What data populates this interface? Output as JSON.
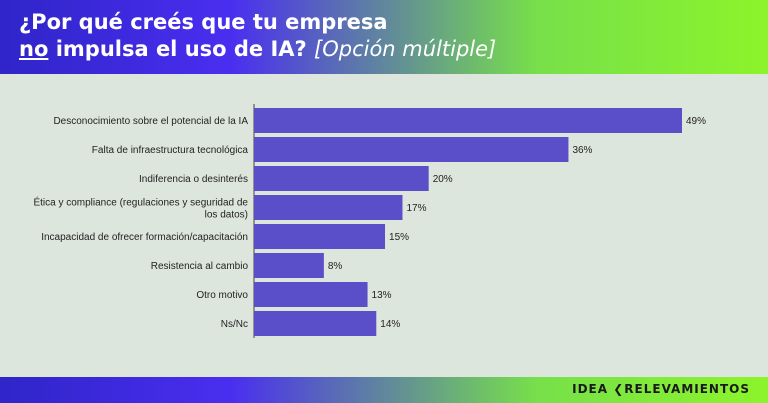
{
  "header": {
    "title_line1": "¿Por qué creés que tu empresa",
    "title_no": "no",
    "title_line2_rest": " impulsa el uso de IA? ",
    "title_option": "[Opción múltiple]"
  },
  "footer": {
    "logo_left": "IDEA",
    "logo_right": "RELEVAMIENTOS"
  },
  "colors": {
    "bar": "#5b4fc9",
    "header_start": "#2f25c8",
    "header_end": "#8cf42a",
    "background": "#dde6dd"
  },
  "chart_data": {
    "type": "bar",
    "orientation": "horizontal",
    "categories": [
      "Desconocimiento sobre el potencial de la IA",
      "Falta de infraestructura tecnológica",
      "Indiferencia o desinterés",
      "Ética y compliance (regulaciones y seguridad de los datos)",
      "Incapacidad de ofrecer formación/capacitación",
      "Resistencia al cambio",
      "Otro motivo",
      "Ns/Nc"
    ],
    "values": [
      49,
      36,
      20,
      17,
      15,
      8,
      13,
      14
    ],
    "value_labels": [
      "49%",
      "36%",
      "20%",
      "17%",
      "15%",
      "8%",
      "13%",
      "14%"
    ],
    "xlim": [
      0,
      49
    ]
  }
}
